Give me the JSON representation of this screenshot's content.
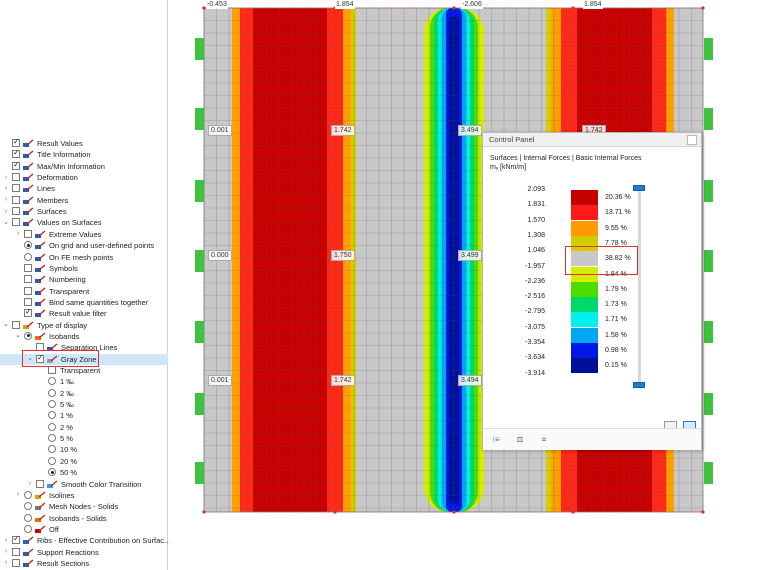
{
  "tree": {
    "items": [
      {
        "label": "Result Values",
        "indent": 0,
        "arrow": "",
        "control": "checkbox",
        "checked": true,
        "icon": "result-values-icon"
      },
      {
        "label": "Title Information",
        "indent": 0,
        "arrow": "",
        "control": "checkbox",
        "checked": true,
        "icon": "title-info-icon"
      },
      {
        "label": "Max/Min Information",
        "indent": 0,
        "arrow": "",
        "control": "checkbox",
        "checked": true,
        "icon": "maxmin-info-icon"
      },
      {
        "label": "Deformation",
        "indent": 0,
        "arrow": "›",
        "control": "checkbox",
        "checked": false,
        "icon": "deformation-icon"
      },
      {
        "label": "Lines",
        "indent": 0,
        "arrow": "›",
        "control": "checkbox",
        "checked": false,
        "icon": "lines-icon"
      },
      {
        "label": "Members",
        "indent": 0,
        "arrow": "›",
        "control": "checkbox",
        "checked": false,
        "icon": "members-icon"
      },
      {
        "label": "Surfaces",
        "indent": 0,
        "arrow": "›",
        "control": "checkbox",
        "checked": false,
        "icon": "surfaces-icon"
      },
      {
        "label": "Values on Surfaces",
        "indent": 0,
        "arrow": "⌄",
        "control": "checkbox",
        "checked": false,
        "icon": "values-surfaces-icon"
      },
      {
        "label": "Extreme Values",
        "indent": 1,
        "arrow": "›",
        "control": "checkbox",
        "checked": false,
        "icon": "extreme-values-icon"
      },
      {
        "label": "On grid and user-defined points",
        "indent": 1,
        "arrow": "",
        "control": "radio",
        "checked": true,
        "icon": "grid-points-icon"
      },
      {
        "label": "On FE mesh points",
        "indent": 1,
        "arrow": "",
        "control": "radio",
        "checked": false,
        "icon": "fe-mesh-points-icon"
      },
      {
        "label": "Symbols",
        "indent": 1,
        "arrow": "",
        "control": "checkbox",
        "checked": false,
        "icon": "symbols-icon"
      },
      {
        "label": "Numbering",
        "indent": 1,
        "arrow": "",
        "control": "checkbox",
        "checked": false,
        "icon": "numbering-icon"
      },
      {
        "label": "Transparent",
        "indent": 1,
        "arrow": "",
        "control": "checkbox",
        "checked": false,
        "icon": "transparent-icon"
      },
      {
        "label": "Bind same quantities together",
        "indent": 1,
        "arrow": "",
        "control": "checkbox",
        "checked": false,
        "icon": "bind-quantities-icon"
      },
      {
        "label": "Result value filter",
        "indent": 1,
        "arrow": "",
        "control": "checkbox",
        "checked": true,
        "icon": "value-filter-icon"
      },
      {
        "label": "Type of display",
        "indent": 0,
        "arrow": "⌄",
        "control": "checkbox",
        "checked": false,
        "icon": "type-display-icon"
      },
      {
        "label": "Isobands",
        "indent": 1,
        "arrow": "⌄",
        "control": "radio",
        "checked": true,
        "icon": "isobands-icon"
      },
      {
        "label": "Separation Lines",
        "indent": 2,
        "arrow": "",
        "control": "checkbox",
        "checked": false,
        "icon": "separation-lines-icon"
      },
      {
        "label": "Gray Zone",
        "indent": 2,
        "arrow": "⌄",
        "control": "checkbox",
        "checked": true,
        "icon": "gray-zone-icon",
        "selected": true
      },
      {
        "label": "Transparent",
        "indent": 3,
        "arrow": "",
        "control": "checkbox",
        "checked": false,
        "icon": ""
      },
      {
        "label": "1 ‰",
        "indent": 3,
        "arrow": "",
        "control": "radio",
        "checked": false,
        "icon": ""
      },
      {
        "label": "2 ‰",
        "indent": 3,
        "arrow": "",
        "control": "radio",
        "checked": false,
        "icon": ""
      },
      {
        "label": "5 ‰",
        "indent": 3,
        "arrow": "",
        "control": "radio",
        "checked": false,
        "icon": ""
      },
      {
        "label": "1 %",
        "indent": 3,
        "arrow": "",
        "control": "radio",
        "checked": false,
        "icon": ""
      },
      {
        "label": "2 %",
        "indent": 3,
        "arrow": "",
        "control": "radio",
        "checked": false,
        "icon": ""
      },
      {
        "label": "5 %",
        "indent": 3,
        "arrow": "",
        "control": "radio",
        "checked": false,
        "icon": ""
      },
      {
        "label": "10 %",
        "indent": 3,
        "arrow": "",
        "control": "radio",
        "checked": false,
        "icon": ""
      },
      {
        "label": "20 %",
        "indent": 3,
        "arrow": "",
        "control": "radio",
        "checked": false,
        "icon": ""
      },
      {
        "label": "50 %",
        "indent": 3,
        "arrow": "",
        "control": "radio",
        "checked": true,
        "icon": ""
      },
      {
        "label": "Smooth Color Transition",
        "indent": 2,
        "arrow": "›",
        "control": "checkbox",
        "checked": false,
        "icon": "smooth-transition-icon"
      },
      {
        "label": "Isolines",
        "indent": 1,
        "arrow": "›",
        "control": "radio",
        "checked": false,
        "icon": "isolines-icon"
      },
      {
        "label": "Mesh Nodes - Solids",
        "indent": 1,
        "arrow": "",
        "control": "radio",
        "checked": false,
        "icon": "mesh-nodes-icon"
      },
      {
        "label": "Isobands - Solids",
        "indent": 1,
        "arrow": "",
        "control": "radio",
        "checked": false,
        "icon": "isobands-solids-icon"
      },
      {
        "label": "Off",
        "indent": 1,
        "arrow": "",
        "control": "radio",
        "checked": false,
        "icon": "off-icon"
      },
      {
        "label": "Ribs - Effective Contribution on Surfac...",
        "indent": 0,
        "arrow": "›",
        "control": "checkbox",
        "checked": true,
        "icon": "ribs-icon"
      },
      {
        "label": "Support Reactions",
        "indent": 0,
        "arrow": "›",
        "control": "checkbox",
        "checked": false,
        "icon": "support-reactions-icon"
      },
      {
        "label": "Result Sections",
        "indent": 0,
        "arrow": "›",
        "control": "checkbox",
        "checked": false,
        "icon": "result-sections-icon"
      }
    ]
  },
  "canvas": {
    "top_labels": [
      "-0.453",
      "1.854",
      "-2.606",
      "1.854"
    ],
    "value_labels": {
      "row1": [
        "0.001",
        "1.742",
        "3.494",
        "1.742"
      ],
      "row2": [
        "0.000",
        "1.750",
        "3.499"
      ],
      "row3": [
        "0.001",
        "1.742",
        "3.494"
      ]
    }
  },
  "control_panel": {
    "title": "Control Panel",
    "subtitle": "Surfaces | Internal Forces | Basic Internal Forces",
    "quantity": "mᵧ [kNm/m]",
    "legend_values": [
      "2.093",
      "1.831",
      "1.570",
      "1.308",
      "1.046",
      "-1.957",
      "-2.236",
      "-2.516",
      "-2.795",
      "-3.075",
      "-3.354",
      "-3.634",
      "-3.914"
    ],
    "legend_percents": [
      "20.36 %",
      "13.71 %",
      "9.55 %",
      "7.78 %",
      "38.82 %",
      "1.84 %",
      "1.79 %",
      "1.73 %",
      "1.71 %",
      "1.58 %",
      "0.98 %",
      "0.15 %"
    ],
    "legend_colors": [
      "#c40000",
      "#ff1a1a",
      "#ff9a00",
      "#cfcc00",
      "#c8c8c8",
      "#d4ee00",
      "#4ddc00",
      "#00d86a",
      "#00f0ee",
      "#00a6f0",
      "#0018e6",
      "#00109a"
    ]
  },
  "colors": {
    "highlight": "#e03030",
    "accent": "#1a7fd4",
    "support": "#3fc23f"
  }
}
